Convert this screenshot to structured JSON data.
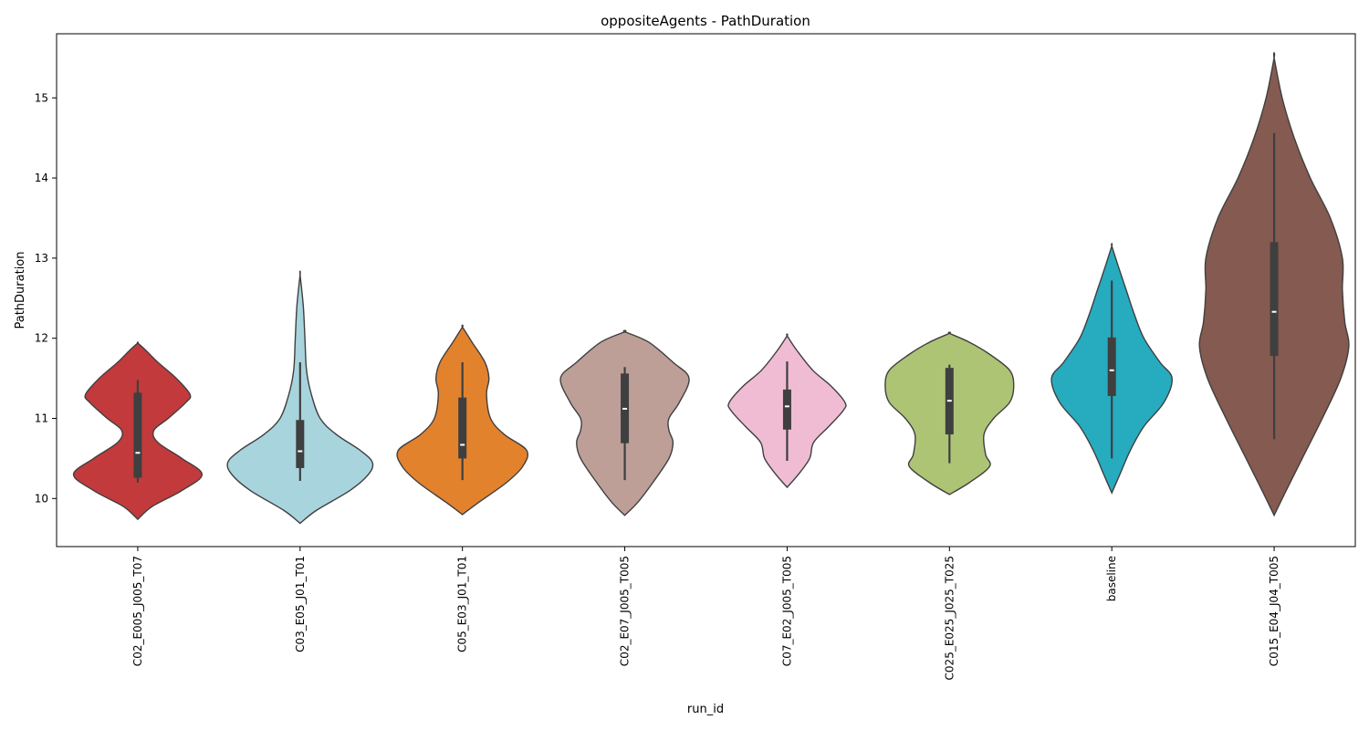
{
  "chart_data": {
    "type": "violin",
    "title": "oppositeAgents - PathDuration",
    "xlabel": "run_id",
    "ylabel": "PathDuration",
    "ylim": [
      9.4,
      15.8
    ],
    "yticks": [
      10,
      11,
      12,
      13,
      14,
      15
    ],
    "grid": false,
    "legend": "none",
    "violins": [
      {
        "category": "C02_E005_J005_T07",
        "color": "#c33a3c",
        "y_min": 9.74,
        "y_max": 11.94,
        "box_whisker": [
          10.2,
          11.48
        ],
        "box_q1": 10.26,
        "box_q3": 11.32,
        "median": 10.57,
        "profile": [
          [
            9.74,
            0.0
          ],
          [
            9.9,
            0.18
          ],
          [
            10.1,
            0.55
          ],
          [
            10.3,
            0.8
          ],
          [
            10.5,
            0.55
          ],
          [
            10.7,
            0.25
          ],
          [
            10.85,
            0.2
          ],
          [
            11.0,
            0.38
          ],
          [
            11.2,
            0.6
          ],
          [
            11.3,
            0.65
          ],
          [
            11.5,
            0.48
          ],
          [
            11.7,
            0.25
          ],
          [
            11.85,
            0.1
          ],
          [
            11.94,
            0.0
          ]
        ]
      },
      {
        "category": "C03_E05_J01_T01",
        "color": "#a8d4dd",
        "y_min": 9.69,
        "y_max": 12.79,
        "box_whisker": [
          10.22,
          11.7
        ],
        "box_q1": 10.38,
        "box_q3": 10.98,
        "median": 10.59,
        "profile": [
          [
            9.69,
            0.0
          ],
          [
            9.85,
            0.2
          ],
          [
            10.1,
            0.62
          ],
          [
            10.3,
            0.85
          ],
          [
            10.45,
            0.9
          ],
          [
            10.6,
            0.75
          ],
          [
            10.8,
            0.45
          ],
          [
            11.0,
            0.25
          ],
          [
            11.3,
            0.14
          ],
          [
            11.6,
            0.08
          ],
          [
            12.0,
            0.06
          ],
          [
            12.4,
            0.04
          ],
          [
            12.79,
            0.0
          ]
        ]
      },
      {
        "category": "C05_E03_J01_T01",
        "color": "#e3822d",
        "y_min": 9.8,
        "y_max": 12.14,
        "box_whisker": [
          10.23,
          11.7
        ],
        "box_q1": 10.5,
        "box_q3": 11.26,
        "median": 10.67,
        "profile": [
          [
            9.8,
            0.0
          ],
          [
            9.95,
            0.2
          ],
          [
            10.2,
            0.55
          ],
          [
            10.4,
            0.75
          ],
          [
            10.6,
            0.8
          ],
          [
            10.8,
            0.52
          ],
          [
            11.0,
            0.35
          ],
          [
            11.3,
            0.3
          ],
          [
            11.5,
            0.33
          ],
          [
            11.7,
            0.28
          ],
          [
            11.95,
            0.12
          ],
          [
            12.14,
            0.0
          ]
        ]
      },
      {
        "category": "C02_E07_J005_T005",
        "color": "#bd9f98",
        "y_min": 9.79,
        "y_max": 12.08,
        "box_whisker": [
          10.23,
          11.64
        ],
        "box_q1": 10.69,
        "box_q3": 11.56,
        "median": 11.12,
        "profile": [
          [
            9.79,
            0.0
          ],
          [
            9.95,
            0.16
          ],
          [
            10.2,
            0.35
          ],
          [
            10.5,
            0.55
          ],
          [
            10.7,
            0.6
          ],
          [
            10.85,
            0.55
          ],
          [
            11.0,
            0.55
          ],
          [
            11.2,
            0.68
          ],
          [
            11.5,
            0.8
          ],
          [
            11.7,
            0.6
          ],
          [
            11.95,
            0.3
          ],
          [
            12.08,
            0.0
          ]
        ]
      },
      {
        "category": "C07_E02_J005_T005",
        "color": "#f0bcd4",
        "y_min": 10.14,
        "y_max": 12.03,
        "box_whisker": [
          10.47,
          11.71
        ],
        "box_q1": 10.86,
        "box_q3": 11.36,
        "median": 11.15,
        "profile": [
          [
            10.14,
            0.0
          ],
          [
            10.3,
            0.14
          ],
          [
            10.5,
            0.28
          ],
          [
            10.7,
            0.33
          ],
          [
            10.9,
            0.52
          ],
          [
            11.1,
            0.7
          ],
          [
            11.2,
            0.72
          ],
          [
            11.4,
            0.55
          ],
          [
            11.6,
            0.32
          ],
          [
            11.85,
            0.12
          ],
          [
            12.03,
            0.0
          ]
        ]
      },
      {
        "category": "C025_E025_J025_T025",
        "color": "#aec475",
        "y_min": 10.05,
        "y_max": 12.06,
        "box_whisker": [
          10.44,
          11.67
        ],
        "box_q1": 10.8,
        "box_q3": 11.63,
        "median": 11.22,
        "profile": [
          [
            10.05,
            0.0
          ],
          [
            10.2,
            0.25
          ],
          [
            10.4,
            0.5
          ],
          [
            10.55,
            0.45
          ],
          [
            10.8,
            0.43
          ],
          [
            11.0,
            0.55
          ],
          [
            11.2,
            0.75
          ],
          [
            11.4,
            0.8
          ],
          [
            11.6,
            0.75
          ],
          [
            11.8,
            0.5
          ],
          [
            11.95,
            0.25
          ],
          [
            12.06,
            0.0
          ]
        ]
      },
      {
        "category": "baseline",
        "color": "#27abbf",
        "y_min": 10.07,
        "y_max": 13.15,
        "box_whisker": [
          10.5,
          12.72
        ],
        "box_q1": 11.28,
        "box_q3": 12.01,
        "median": 11.6,
        "profile": [
          [
            10.07,
            0.0
          ],
          [
            10.3,
            0.1
          ],
          [
            10.6,
            0.23
          ],
          [
            10.9,
            0.4
          ],
          [
            11.2,
            0.65
          ],
          [
            11.5,
            0.75
          ],
          [
            11.7,
            0.6
          ],
          [
            12.0,
            0.4
          ],
          [
            12.3,
            0.28
          ],
          [
            12.6,
            0.18
          ],
          [
            12.9,
            0.08
          ],
          [
            13.15,
            0.0
          ]
        ]
      },
      {
        "category": "C015_E04_J04_T005",
        "color": "#855a50",
        "y_min": 9.79,
        "y_max": 15.5,
        "box_whisker": [
          10.74,
          14.56
        ],
        "box_q1": 11.78,
        "box_q3": 13.2,
        "median": 12.33,
        "profile": [
          [
            9.79,
            0.0
          ],
          [
            10.1,
            0.15
          ],
          [
            10.5,
            0.35
          ],
          [
            11.0,
            0.6
          ],
          [
            11.5,
            0.83
          ],
          [
            11.9,
            0.93
          ],
          [
            12.2,
            0.88
          ],
          [
            12.6,
            0.85
          ],
          [
            13.0,
            0.85
          ],
          [
            13.5,
            0.7
          ],
          [
            14.0,
            0.45
          ],
          [
            14.5,
            0.25
          ],
          [
            15.0,
            0.1
          ],
          [
            15.5,
            0.0
          ]
        ]
      }
    ]
  }
}
